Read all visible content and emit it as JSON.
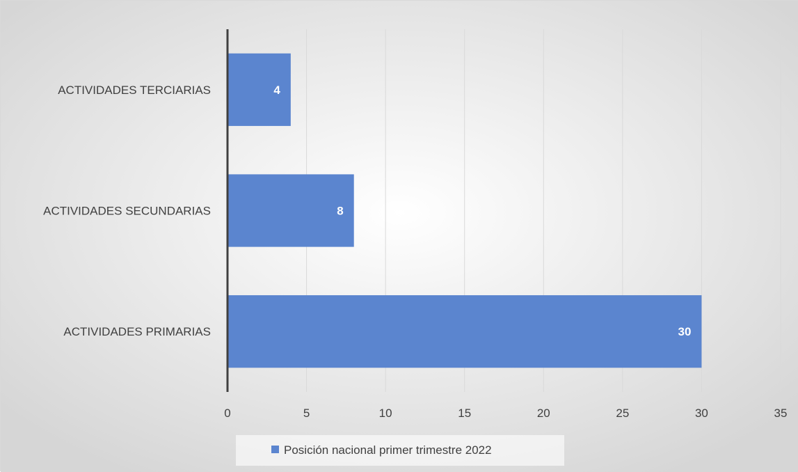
{
  "chart_data": {
    "type": "bar",
    "orientation": "horizontal",
    "categories": [
      "ACTIVIDADES PRIMARIAS",
      "ACTIVIDADES SECUNDARIAS",
      "ACTIVIDADES TERCIARIAS"
    ],
    "series": [
      {
        "name": "Posición nacional primer trimestre 2022",
        "values": [
          30,
          8,
          4
        ]
      }
    ],
    "xlim": [
      0,
      35
    ],
    "x_ticks": [
      "0",
      "5",
      "10",
      "15",
      "20",
      "25",
      "30",
      "35"
    ],
    "data_labels": [
      "30",
      "8",
      "4"
    ],
    "grid": "vertical",
    "legend": "bottom",
    "colors": {
      "bar": "#5b85cf",
      "grid": "#d9d9d9",
      "axis": "#404040",
      "background_center": "#ffffff",
      "background_edge": "#d6d6d6"
    }
  }
}
